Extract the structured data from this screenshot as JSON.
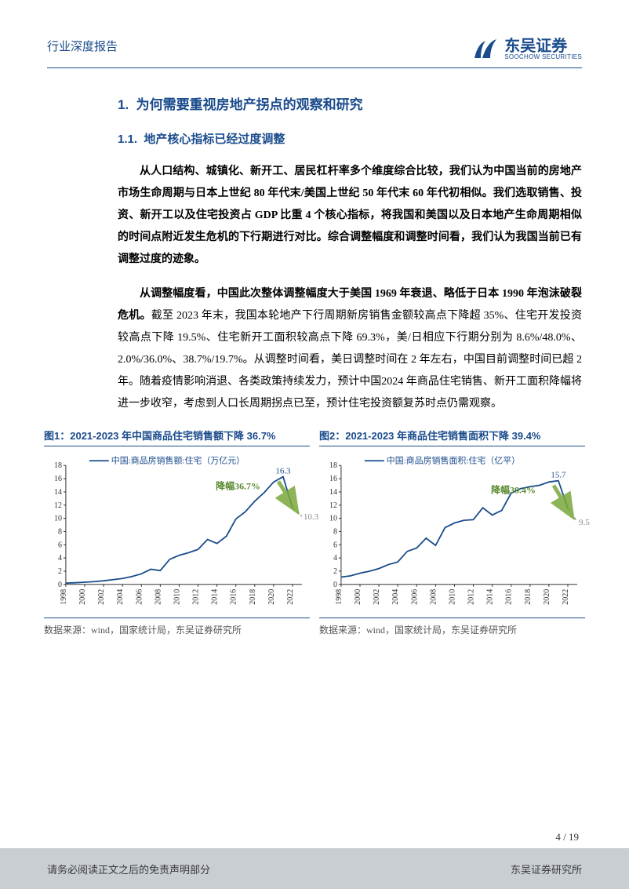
{
  "header": {
    "report_type": "行业深度报告",
    "logo_cn": "东吴证券",
    "logo_en": "SOOCHOW SECURITIES"
  },
  "section1": {
    "number": "1.",
    "title": "为何需要重视房地产拐点的观察和研究"
  },
  "section11": {
    "number": "1.1.",
    "title": "地产核心指标已经过度调整"
  },
  "para1": "从人口结构、城镇化、新开工、居民杠杆率多个维度综合比较，我们认为中国当前的房地产市场生命周期与日本上世纪 80 年代末/美国上世纪 50 年代末 60 年代初相似。我们选取销售、投资、新开工以及住宅投资占 GDP 比重 4 个核心指标，将我国和美国以及日本地产生命周期相似的时间点附近发生危机的下行期进行对比。综合调整幅度和调整时间看，我们认为我国当前已有调整过度的迹象。",
  "para2_bold": "从调整幅度看，中国此次整体调整幅度大于美国 1969 年衰退、略低于日本 1990 年泡沫破裂危机。",
  "para2_rest": "截至 2023 年末，我国本轮地产下行周期新房销售金额较高点下降超 35%、住宅开发投资较高点下降 19.5%、住宅新开工面积较高点下降 69.3%，美/日相应下行期分别为 8.6%/48.0%、2.0%/36.0%、38.7%/19.7%。从调整时间看，美日调整时间在 2 年左右，中国目前调整时间已超 2 年。随着疫情影响消退、各类政策持续发力，预计中国2024 年商品住宅销售、新开工面积降幅将进一步收窄，考虑到人口长周期拐点已至，预计住宅投资额复苏时点仍需观察。",
  "chart1": {
    "title": "图1：2021-2023 年中国商品住宅销售额下降 36.7%",
    "legend": "中国:商品房销售额:住宅（万亿元）",
    "annotation": "降幅36.7%",
    "peak_label": "16.3",
    "end_label": "10.3",
    "type": "line",
    "years": [
      1998,
      2000,
      2002,
      2004,
      2006,
      2008,
      2010,
      2012,
      2014,
      2016,
      2018,
      2020,
      2022
    ],
    "y_ticks": [
      0,
      2,
      4,
      6,
      8,
      10,
      12,
      14,
      16,
      18
    ],
    "ylim": [
      0,
      18
    ],
    "series_color": "#1a4b8c",
    "forecast_color": "#999999",
    "arrow_color": "#7aa83a",
    "data_x": [
      1998,
      1999,
      2000,
      2001,
      2002,
      2003,
      2004,
      2005,
      2006,
      2007,
      2008,
      2009,
      2010,
      2011,
      2012,
      2013,
      2014,
      2015,
      2016,
      2017,
      2018,
      2019,
      2020,
      2021,
      2022,
      2023
    ],
    "data_y": [
      0.2,
      0.25,
      0.33,
      0.42,
      0.55,
      0.72,
      0.9,
      1.2,
      1.6,
      2.3,
      2.1,
      3.8,
      4.4,
      4.8,
      5.3,
      6.8,
      6.2,
      7.3,
      9.9,
      11.0,
      12.6,
      13.9,
      15.5,
      16.3,
      11.6,
      10.3
    ],
    "forecast_start_idx": 24,
    "source": "数据来源：wind，国家统计局，东吴证券研究所"
  },
  "chart2": {
    "title": "图2：2021-2023 年商品住宅销售面积下降 39.4%",
    "legend": "中国:商品房销售面积:住宅（亿平）",
    "annotation": "降幅39.4%",
    "peak_label": "15.7",
    "end_label": "9.5",
    "type": "line",
    "years": [
      1998,
      2000,
      2002,
      2004,
      2006,
      2008,
      2010,
      2012,
      2014,
      2016,
      2018,
      2020,
      2022
    ],
    "y_ticks": [
      0,
      2,
      4,
      6,
      8,
      10,
      12,
      14,
      16,
      18
    ],
    "ylim": [
      0,
      18
    ],
    "series_color": "#1a4b8c",
    "forecast_color": "#999999",
    "arrow_color": "#7aa83a",
    "data_x": [
      1998,
      1999,
      2000,
      2001,
      2002,
      2003,
      2004,
      2005,
      2006,
      2007,
      2008,
      2009,
      2010,
      2011,
      2012,
      2013,
      2014,
      2015,
      2016,
      2017,
      2018,
      2019,
      2020,
      2021,
      2022,
      2023
    ],
    "data_y": [
      1.1,
      1.3,
      1.7,
      2.0,
      2.4,
      3.0,
      3.4,
      5.0,
      5.5,
      7.0,
      5.9,
      8.6,
      9.3,
      9.7,
      9.8,
      11.6,
      10.5,
      11.2,
      13.8,
      14.5,
      14.8,
      15.0,
      15.5,
      15.7,
      11.5,
      9.5
    ],
    "forecast_start_idx": 24,
    "source": "数据来源：wind，国家统计局，东吴证券研究所"
  },
  "page_number": "4 / 19",
  "footer": {
    "left": "请务必阅读正文之后的免责声明部分",
    "right": "东吴证券研究所"
  },
  "colors": {
    "brand": "#1a4b8c",
    "footer_bg": "#c9ced3",
    "anno_green": "#5a8a2e"
  }
}
